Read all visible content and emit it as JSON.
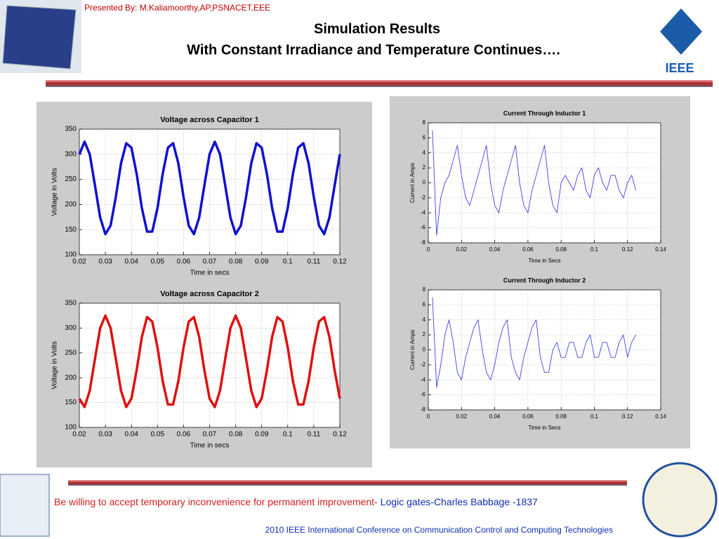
{
  "header": {
    "presenter": "Presented By: M.Kaliamoorthy,AP,PSNACET,EEE",
    "title": "Simulation Results",
    "subtitle": "With Constant Irradiance and Temperature Continues….",
    "logo": "IEEE"
  },
  "footer": {
    "quote": "Be willing to accept temporary inconvenience for permanent improvement-",
    "author": "Logic gates-Charles Babbage -1837",
    "conference": "2010 IEEE International Conference on Communication Control and Computing Technologies"
  },
  "chart_data": [
    {
      "type": "line",
      "title": "Voltage across Capacitor 1",
      "x_label": "Time in secs",
      "y_label": "Voltage in Volts",
      "grid": true,
      "xlim": [
        0.02,
        0.12
      ],
      "ylim": [
        100,
        350
      ],
      "xticks": [
        0.02,
        0.03,
        0.04,
        0.05,
        0.06,
        0.07,
        0.08,
        0.09,
        0.1,
        0.11,
        0.12
      ],
      "yticks": [
        100,
        150,
        200,
        250,
        300,
        350
      ],
      "x": [
        0.02,
        0.022,
        0.024,
        0.026,
        0.028,
        0.03,
        0.032,
        0.034,
        0.036,
        0.038,
        0.04,
        0.042,
        0.044,
        0.046,
        0.048,
        0.05,
        0.052,
        0.054,
        0.056,
        0.058,
        0.06,
        0.062,
        0.064,
        0.066,
        0.068,
        0.07,
        0.072,
        0.074,
        0.076,
        0.078,
        0.08,
        0.082,
        0.084,
        0.086,
        0.088,
        0.09,
        0.092,
        0.094,
        0.096,
        0.098,
        0.1,
        0.102,
        0.104,
        0.106,
        0.108,
        0.11,
        0.112,
        0.114,
        0.116,
        0.118,
        0.12
      ],
      "series": [
        {
          "color": "#1010d0",
          "values": [
            300,
            325,
            300,
            238,
            174,
            141,
            158,
            215,
            282,
            322,
            313,
            261,
            193,
            146,
            146,
            193,
            261,
            313,
            322,
            282,
            215,
            158,
            141,
            174,
            238,
            300,
            325,
            300,
            238,
            174,
            141,
            158,
            215,
            282,
            322,
            313,
            261,
            193,
            146,
            146,
            193,
            261,
            313,
            322,
            282,
            215,
            158,
            141,
            174,
            238,
            300
          ]
        }
      ]
    },
    {
      "type": "line",
      "title": "Voltage across Capacitor 2",
      "x_label": "Time in secs",
      "y_label": "Voltage in Volts",
      "grid": true,
      "xlim": [
        0.02,
        0.12
      ],
      "ylim": [
        100,
        350
      ],
      "xticks": [
        0.02,
        0.03,
        0.04,
        0.05,
        0.06,
        0.07,
        0.08,
        0.09,
        0.1,
        0.11,
        0.12
      ],
      "yticks": [
        100,
        150,
        200,
        250,
        300,
        350
      ],
      "x": [
        0.02,
        0.022,
        0.024,
        0.026,
        0.028,
        0.03,
        0.032,
        0.034,
        0.036,
        0.038,
        0.04,
        0.042,
        0.044,
        0.046,
        0.048,
        0.05,
        0.052,
        0.054,
        0.056,
        0.058,
        0.06,
        0.062,
        0.064,
        0.066,
        0.068,
        0.07,
        0.072,
        0.074,
        0.076,
        0.078,
        0.08,
        0.082,
        0.084,
        0.086,
        0.088,
        0.09,
        0.092,
        0.094,
        0.096,
        0.098,
        0.1,
        0.102,
        0.104,
        0.106,
        0.108,
        0.11,
        0.112,
        0.114,
        0.116,
        0.118,
        0.12
      ],
      "series": [
        {
          "color": "#e01010",
          "values": [
            158,
            141,
            174,
            238,
            300,
            325,
            300,
            238,
            174,
            141,
            158,
            215,
            282,
            322,
            313,
            261,
            193,
            146,
            146,
            193,
            261,
            313,
            322,
            282,
            215,
            158,
            141,
            174,
            238,
            300,
            325,
            300,
            238,
            174,
            141,
            158,
            215,
            282,
            322,
            313,
            261,
            193,
            146,
            146,
            193,
            261,
            313,
            322,
            282,
            215,
            158
          ]
        }
      ]
    },
    {
      "type": "line",
      "title": "Current Through Inductor 1",
      "x_label": "Time in Secs",
      "y_label": "Current in Amps",
      "grid": true,
      "xlim": [
        0,
        0.14
      ],
      "ylim": [
        -8,
        8
      ],
      "xticks": [
        0,
        0.02,
        0.04,
        0.06,
        0.08,
        0.1,
        0.12,
        0.14
      ],
      "yticks": [
        -8,
        -6,
        -4,
        -2,
        0,
        2,
        4,
        6,
        8
      ],
      "x": [
        0.0025,
        0.005,
        0.0075,
        0.01,
        0.0125,
        0.015,
        0.0175,
        0.02,
        0.0225,
        0.025,
        0.0275,
        0.03,
        0.0325,
        0.035,
        0.0375,
        0.04,
        0.0425,
        0.045,
        0.0475,
        0.05,
        0.0525,
        0.055,
        0.0575,
        0.06,
        0.0625,
        0.065,
        0.0675,
        0.07,
        0.0725,
        0.075,
        0.0775,
        0.08,
        0.0825,
        0.085,
        0.0875,
        0.09,
        0.0925,
        0.095,
        0.0975,
        0.1,
        0.1025,
        0.105,
        0.1075,
        0.11,
        0.1125,
        0.115,
        0.1175,
        0.12,
        0.1225,
        0.125
      ],
      "series": [
        {
          "color": "#4040e8",
          "values": [
            7,
            -7,
            -2,
            0,
            1,
            3,
            5,
            1,
            -2,
            -3,
            -1,
            1,
            3,
            5,
            0,
            -3,
            -4,
            -1,
            1,
            3,
            5,
            0,
            -3,
            -4,
            -1,
            1,
            3,
            5,
            0,
            -3,
            -4,
            0,
            1,
            0,
            -1,
            1,
            2,
            -1,
            -2,
            1,
            2,
            0,
            -1,
            1,
            1,
            -1,
            -2,
            0,
            1,
            -1
          ]
        }
      ]
    },
    {
      "type": "line",
      "title": "Current Through Inductor 2",
      "x_label": "Time in Secs",
      "y_label": "Current in Amps",
      "grid": true,
      "xlim": [
        0,
        0.14
      ],
      "ylim": [
        -8,
        8
      ],
      "xticks": [
        0,
        0.02,
        0.04,
        0.06,
        0.08,
        0.1,
        0.12,
        0.14
      ],
      "yticks": [
        -8,
        -6,
        -4,
        -2,
        0,
        2,
        4,
        6,
        8
      ],
      "x": [
        0.0025,
        0.005,
        0.0075,
        0.01,
        0.0125,
        0.015,
        0.0175,
        0.02,
        0.0225,
        0.025,
        0.0275,
        0.03,
        0.0325,
        0.035,
        0.0375,
        0.04,
        0.0425,
        0.045,
        0.0475,
        0.05,
        0.0525,
        0.055,
        0.0575,
        0.06,
        0.0625,
        0.065,
        0.0675,
        0.07,
        0.0725,
        0.075,
        0.0775,
        0.08,
        0.0825,
        0.085,
        0.0875,
        0.09,
        0.0925,
        0.095,
        0.0975,
        0.1,
        0.1025,
        0.105,
        0.1075,
        0.11,
        0.1125,
        0.115,
        0.1175,
        0.12,
        0.1225,
        0.125
      ],
      "series": [
        {
          "color": "#4040e8",
          "values": [
            7,
            -5,
            -2,
            2,
            4,
            1,
            -3,
            -4,
            -1,
            1,
            3,
            4,
            0,
            -3,
            -4,
            -2,
            1,
            3,
            4,
            -1,
            -3,
            -4,
            -1,
            1,
            3,
            4,
            -1,
            -3,
            -3,
            0,
            1,
            -1,
            -1,
            1,
            1,
            -1,
            -1,
            1,
            2,
            -1,
            -1,
            1,
            1,
            -1,
            -1,
            1,
            2,
            -1,
            1,
            2
          ]
        }
      ]
    }
  ]
}
